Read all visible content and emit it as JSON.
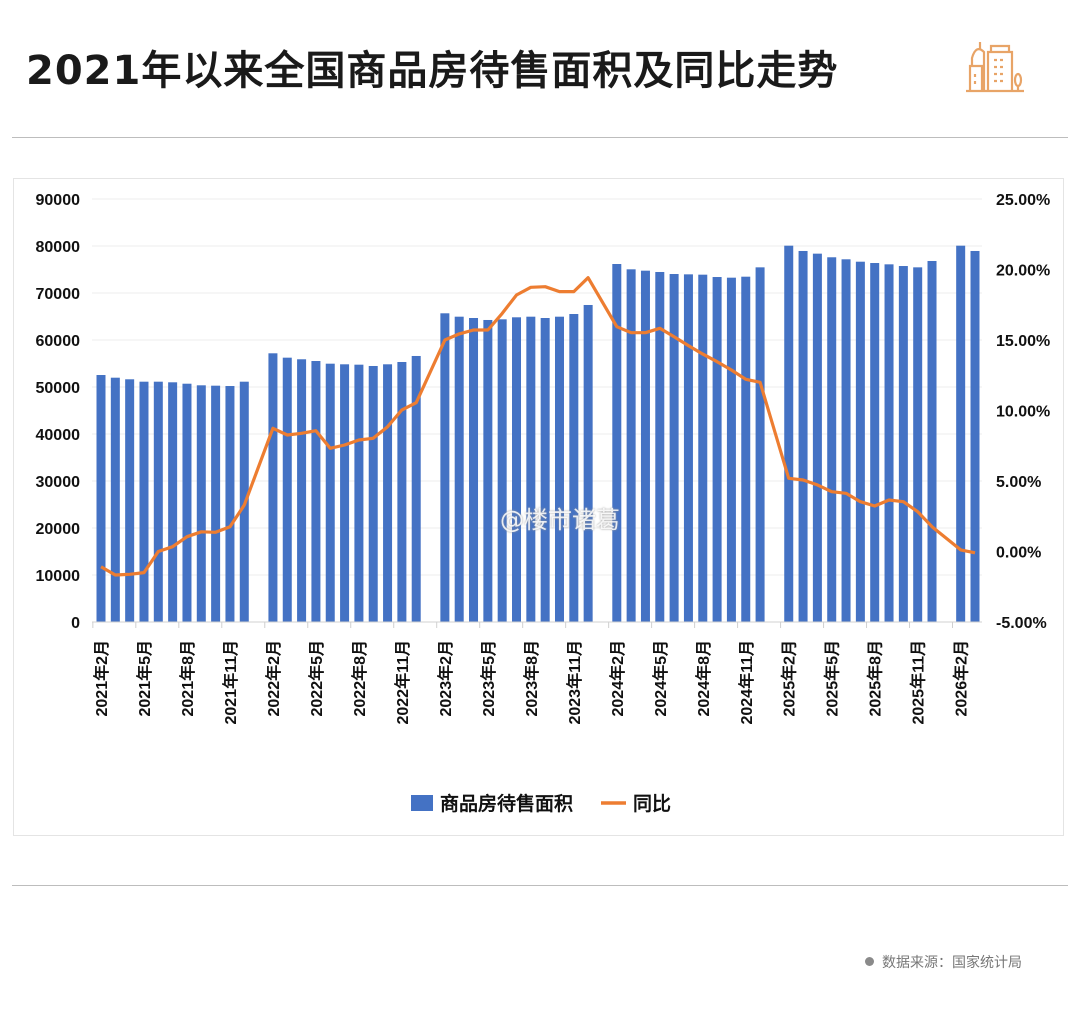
{
  "header": {
    "title": "2021年以来全国商品房待售面积及同比走势",
    "logo_icon": "city-buildings-icon",
    "logo_color": "#E8A467"
  },
  "watermark": "@楼市诸葛",
  "footer": {
    "source": "数据来源：国家统计局"
  },
  "chart_data": {
    "type": "bar+line",
    "categories": [
      "2021年2月",
      "2021年3月",
      "2021年4月",
      "2021年5月",
      "2021年6月",
      "2021年7月",
      "2021年8月",
      "2021年9月",
      "2021年10月",
      "2021年11月",
      "2021年12月",
      "2022年1月",
      "2022年2月",
      "2022年3月",
      "2022年4月",
      "2022年5月",
      "2022年6月",
      "2022年7月",
      "2022年8月",
      "2022年9月",
      "2022年10月",
      "2022年11月",
      "2022年12月",
      "2023年1月",
      "2023年2月",
      "2023年3月",
      "2023年4月",
      "2023年5月",
      "2023年6月",
      "2023年7月",
      "2023年8月",
      "2023年9月",
      "2023年10月",
      "2023年11月",
      "2023年12月",
      "2024年1月",
      "2024年2月",
      "2024年3月",
      "2024年4月",
      "2024年5月",
      "2024年6月",
      "2024年7月",
      "2024年8月",
      "2024年9月",
      "2024年10月",
      "2024年11月",
      "2024年12月",
      "2025年1月",
      "2025年2月",
      "2025年3月",
      "2025年4月",
      "2025年5月",
      "2025年6月",
      "2025年7月",
      "2025年8月",
      "2025年9月",
      "2025年10月",
      "2025年11月",
      "2025年12月",
      "2026年1月",
      "2026年2月",
      "2026年3月"
    ],
    "x_tick_labels": [
      "2021年2月",
      "2021年5月",
      "2021年8月",
      "2021年11月",
      "2022年2月",
      "2022年5月",
      "2022年8月",
      "2022年11月",
      "2023年2月",
      "2023年5月",
      "2023年8月",
      "2023年11月",
      "2024年2月",
      "2024年5月",
      "2024年8月",
      "2024年11月",
      "2025年2月",
      "2025年5月",
      "2025年8月",
      "2025年11月",
      "2026年2月"
    ],
    "series": [
      {
        "name": "商品房待售面积",
        "type": "bar",
        "axis": "left",
        "color": "#4472C4",
        "values": [
          52550,
          51980,
          51640,
          51130,
          51130,
          51000,
          50700,
          50360,
          50280,
          50210,
          51130,
          null,
          57170,
          56240,
          55900,
          55530,
          54960,
          54830,
          54750,
          54470,
          54830,
          55320,
          56600,
          null,
          65680,
          64960,
          64680,
          64260,
          64400,
          64830,
          64960,
          64680,
          64960,
          65530,
          67450,
          null,
          76170,
          75040,
          74750,
          74470,
          74040,
          73970,
          73900,
          73400,
          73260,
          73470,
          75460,
          null,
          80070,
          78940,
          78370,
          77600,
          77170,
          76660,
          76380,
          76100,
          75740,
          75460,
          76810,
          null,
          80070,
          78940
        ]
      },
      {
        "name": "同比",
        "type": "line",
        "axis": "right",
        "unit": "%",
        "color": "#ED7D31",
        "values": [
          -1.08,
          -1.67,
          -1.62,
          -1.5,
          0.0,
          0.34,
          1.05,
          1.4,
          1.36,
          1.76,
          3.3,
          null,
          8.74,
          8.26,
          8.38,
          8.57,
          7.32,
          7.55,
          7.91,
          8.03,
          8.85,
          10.04,
          10.55,
          null,
          15.0,
          15.43,
          15.71,
          15.71,
          16.89,
          18.19,
          18.74,
          18.78,
          18.43,
          18.43,
          19.42,
          null,
          15.94,
          15.52,
          15.52,
          15.83,
          15.23,
          14.6,
          14.0,
          13.46,
          12.87,
          12.21,
          12.0,
          null,
          5.19,
          5.07,
          4.72,
          4.24,
          4.13,
          3.53,
          3.23,
          3.65,
          3.53,
          2.82,
          1.76,
          null,
          0.11,
          -0.09
        ]
      }
    ],
    "y_left": {
      "min": 0,
      "max": 90000,
      "ticks": [
        "0",
        "10000",
        "20000",
        "30000",
        "40000",
        "50000",
        "60000",
        "70000",
        "80000",
        "90000"
      ]
    },
    "y_right": {
      "min": -5,
      "max": 25,
      "ticks": [
        "-5.00%",
        "0.00%",
        "5.00%",
        "10.00%",
        "15.00%",
        "20.00%",
        "25.00%"
      ]
    },
    "grid": true,
    "legend": {
      "position": "bottom",
      "items": [
        "商品房待售面积",
        "同比"
      ]
    }
  }
}
